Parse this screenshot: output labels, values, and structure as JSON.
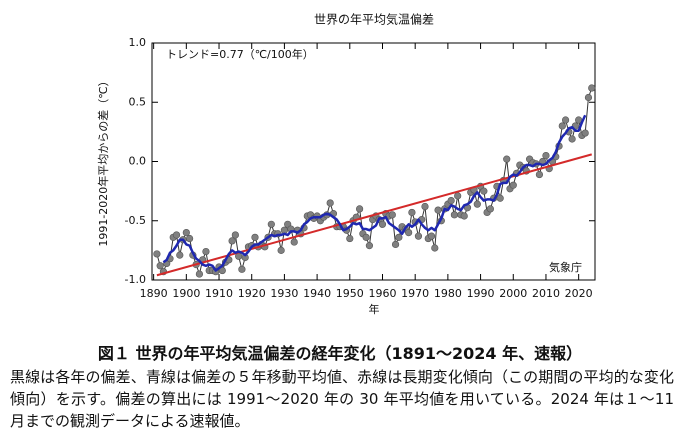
{
  "chart_data": {
    "type": "line",
    "title": "世界の年平均気温偏差",
    "ylabel": "1991-2020年平均からの差（℃）",
    "xlabel": "年",
    "annotations": [
      "トレンド=0.77（℃/100年）",
      "気象庁"
    ],
    "caption": "図１ 世界の年平均気温偏差の経年変化（1891〜2024 年、速報）",
    "note": "黒線は各年の偏差、青線は偏差の５年移動平均値、赤線は長期変化傾向（この期間の平均的な変化傾向）を示す。偏差の算出には 1991〜2020 年の 30 年平均値を用いている。2024 年は１〜11 月までの観測データによる速報値。",
    "x": [
      1891,
      1892,
      1893,
      1894,
      1895,
      1896,
      1897,
      1898,
      1899,
      1900,
      1901,
      1902,
      1903,
      1904,
      1905,
      1906,
      1907,
      1908,
      1909,
      1910,
      1911,
      1912,
      1913,
      1914,
      1915,
      1916,
      1917,
      1918,
      1919,
      1920,
      1921,
      1922,
      1923,
      1924,
      1925,
      1926,
      1927,
      1928,
      1929,
      1930,
      1931,
      1932,
      1933,
      1934,
      1935,
      1936,
      1937,
      1938,
      1939,
      1940,
      1941,
      1942,
      1943,
      1944,
      1945,
      1946,
      1947,
      1948,
      1949,
      1950,
      1951,
      1952,
      1953,
      1954,
      1955,
      1956,
      1957,
      1958,
      1959,
      1960,
      1961,
      1962,
      1963,
      1964,
      1965,
      1966,
      1967,
      1968,
      1969,
      1970,
      1971,
      1972,
      1973,
      1974,
      1975,
      1976,
      1977,
      1978,
      1979,
      1980,
      1981,
      1982,
      1983,
      1984,
      1985,
      1986,
      1987,
      1988,
      1989,
      1990,
      1991,
      1992,
      1993,
      1994,
      1995,
      1996,
      1997,
      1998,
      1999,
      2000,
      2001,
      2002,
      2003,
      2004,
      2005,
      2006,
      2007,
      2008,
      2009,
      2010,
      2011,
      2012,
      2013,
      2014,
      2015,
      2016,
      2017,
      2018,
      2019,
      2020,
      2021,
      2022,
      2023,
      2024
    ],
    "annual": {
      "color": "#808080",
      "line_color": "#333333",
      "values": [
        -0.78,
        -0.88,
        -0.93,
        -0.86,
        -0.82,
        -0.64,
        -0.62,
        -0.79,
        -0.66,
        -0.6,
        -0.65,
        -0.79,
        -0.87,
        -0.95,
        -0.83,
        -0.76,
        -0.92,
        -0.92,
        -0.93,
        -0.89,
        -0.92,
        -0.85,
        -0.83,
        -0.67,
        -0.62,
        -0.8,
        -0.91,
        -0.81,
        -0.72,
        -0.71,
        -0.64,
        -0.72,
        -0.7,
        -0.72,
        -0.64,
        -0.53,
        -0.61,
        -0.61,
        -0.75,
        -0.58,
        -0.53,
        -0.57,
        -0.68,
        -0.58,
        -0.61,
        -0.56,
        -0.46,
        -0.45,
        -0.48,
        -0.46,
        -0.5,
        -0.47,
        -0.45,
        -0.35,
        -0.44,
        -0.55,
        -0.55,
        -0.55,
        -0.58,
        -0.65,
        -0.5,
        -0.47,
        -0.4,
        -0.61,
        -0.64,
        -0.71,
        -0.49,
        -0.46,
        -0.49,
        -0.53,
        -0.44,
        -0.46,
        -0.45,
        -0.7,
        -0.64,
        -0.55,
        -0.57,
        -0.6,
        -0.43,
        -0.51,
        -0.63,
        -0.49,
        -0.38,
        -0.65,
        -0.63,
        -0.73,
        -0.41,
        -0.5,
        -0.4,
        -0.36,
        -0.33,
        -0.45,
        -0.29,
        -0.45,
        -0.46,
        -0.39,
        -0.26,
        -0.24,
        -0.36,
        -0.21,
        -0.25,
        -0.43,
        -0.4,
        -0.31,
        -0.21,
        -0.31,
        -0.16,
        0.02,
        -0.23,
        -0.2,
        -0.1,
        -0.03,
        -0.05,
        -0.08,
        0.02,
        -0.01,
        -0.02,
        -0.11,
        0.0,
        0.05,
        -0.06,
        0.0,
        0.04,
        0.13,
        0.3,
        0.35,
        0.25,
        0.19,
        0.3,
        0.35,
        0.22,
        0.24,
        0.54,
        0.62
      ]
    },
    "moving_average": {
      "color": "#1f28b0",
      "values": [
        null,
        null,
        -0.85,
        -0.83,
        -0.77,
        -0.75,
        -0.71,
        -0.66,
        -0.66,
        -0.7,
        -0.71,
        -0.77,
        -0.82,
        -0.84,
        -0.87,
        -0.88,
        -0.87,
        -0.88,
        -0.92,
        -0.9,
        -0.88,
        -0.83,
        -0.78,
        -0.75,
        -0.77,
        -0.76,
        -0.77,
        -0.79,
        -0.76,
        -0.72,
        -0.7,
        -0.7,
        -0.68,
        -0.66,
        -0.64,
        -0.62,
        -0.63,
        -0.62,
        -0.62,
        -0.61,
        -0.62,
        -0.59,
        -0.59,
        -0.6,
        -0.58,
        -0.53,
        -0.51,
        -0.48,
        -0.47,
        -0.47,
        -0.47,
        -0.45,
        -0.44,
        -0.45,
        -0.47,
        -0.49,
        -0.53,
        -0.58,
        -0.57,
        -0.55,
        -0.52,
        -0.53,
        -0.52,
        -0.57,
        -0.57,
        -0.58,
        -0.56,
        -0.54,
        -0.48,
        -0.48,
        -0.47,
        -0.52,
        -0.54,
        -0.56,
        -0.58,
        -0.61,
        -0.56,
        -0.53,
        -0.55,
        -0.53,
        -0.49,
        -0.53,
        -0.56,
        -0.58,
        -0.56,
        -0.58,
        -0.53,
        -0.48,
        -0.4,
        -0.41,
        -0.37,
        -0.38,
        -0.4,
        -0.41,
        -0.37,
        -0.36,
        -0.34,
        -0.29,
        -0.26,
        -0.3,
        -0.33,
        -0.32,
        -0.32,
        -0.33,
        -0.28,
        -0.19,
        -0.18,
        -0.18,
        -0.13,
        -0.11,
        -0.12,
        -0.09,
        -0.05,
        -0.03,
        -0.03,
        -0.04,
        -0.02,
        -0.02,
        -0.03,
        -0.02,
        0.01,
        0.03,
        0.08,
        0.16,
        0.21,
        0.24,
        0.28,
        0.29,
        0.26,
        0.26,
        0.33,
        0.39,
        null,
        null
      ]
    },
    "trend": {
      "color": "#d42a2a",
      "x": [
        1891,
        2024
      ],
      "values": [
        -0.96,
        0.06
      ]
    },
    "xlim": [
      1889.5,
      2025
    ],
    "xticks": [
      1890,
      1900,
      1910,
      1920,
      1930,
      1940,
      1950,
      1960,
      1970,
      1980,
      1990,
      2000,
      2010,
      2020
    ],
    "ylim": [
      -1.0,
      1.0
    ],
    "yticks": [
      {
        "value": -1.0,
        "label": "-1.0"
      },
      {
        "value": -0.5,
        "label": "-0.5"
      },
      {
        "value": 0,
        "label": "0.0"
      },
      {
        "value": 0.5,
        "label": "0.5"
      },
      {
        "value": 1.0,
        "label": "1.0"
      }
    ]
  }
}
